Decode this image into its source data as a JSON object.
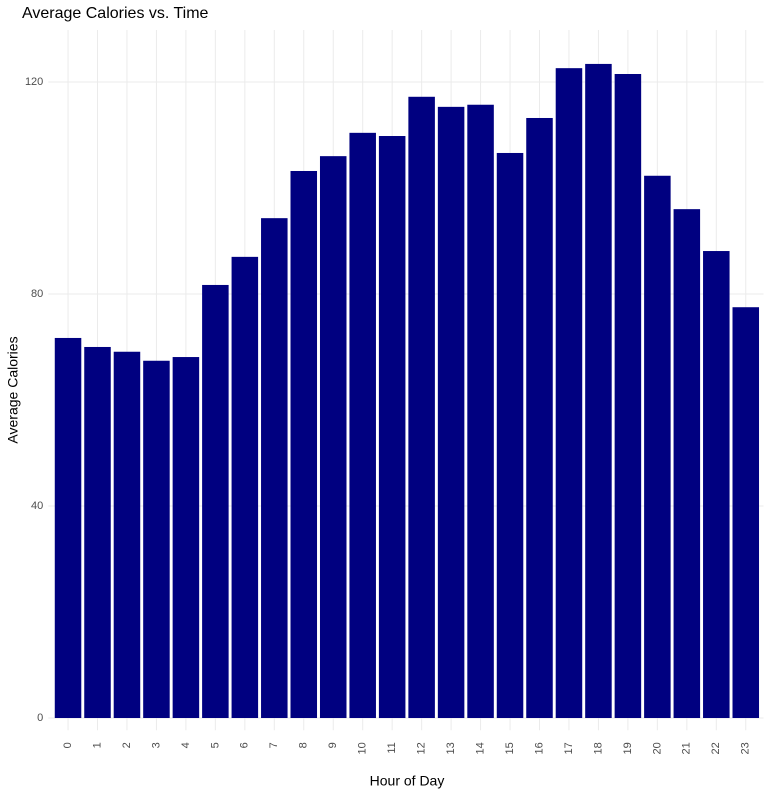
{
  "chart_data": {
    "type": "bar",
    "title": "Average Calories vs. Time",
    "x_label": "Hour of Day",
    "y_label": "Average Calories",
    "categories": [
      "0",
      "1",
      "2",
      "3",
      "4",
      "5",
      "6",
      "7",
      "8",
      "9",
      "10",
      "11",
      "12",
      "13",
      "14",
      "15",
      "16",
      "17",
      "18",
      "19",
      "20",
      "21",
      "22",
      "23"
    ],
    "values": [
      71.7,
      70.0,
      69.1,
      67.4,
      68.1,
      81.7,
      87.0,
      94.3,
      103.2,
      106.0,
      110.4,
      109.8,
      117.2,
      115.3,
      115.7,
      106.6,
      113.2,
      122.6,
      123.4,
      121.5,
      102.3,
      96.0,
      88.1,
      77.5
    ],
    "color": "#000080",
    "ylim": [
      -2.3,
      129.8
    ],
    "yticks": [
      0,
      40,
      80,
      120
    ],
    "grid": true
  }
}
